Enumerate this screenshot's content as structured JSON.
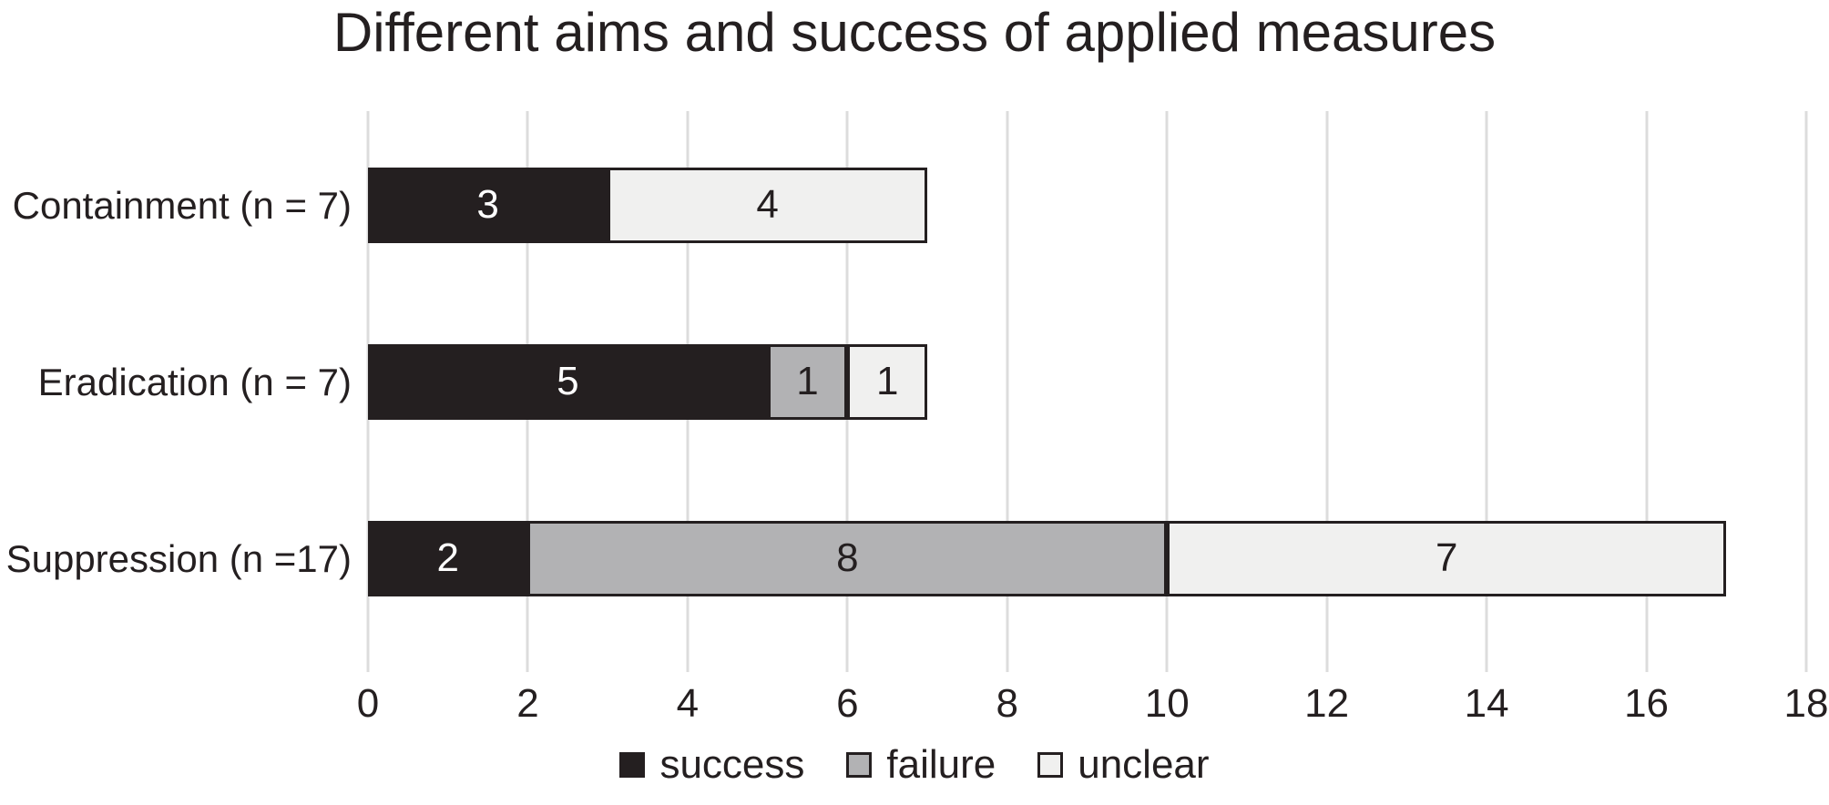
{
  "chart_data": {
    "type": "bar",
    "variant": "horizontal-stacked",
    "title": "Different aims and success of applied measures",
    "categories": [
      "Containment (n = 7)",
      "Eradication (n = 7)",
      "Suppression (n =17)"
    ],
    "series": [
      {
        "name": "success",
        "color": "#241f20",
        "label_color": "#ffffff",
        "values": [
          3,
          5,
          2
        ]
      },
      {
        "name": "failure",
        "color": "#b2b2b4",
        "label_color": "#241f20",
        "values": [
          0,
          1,
          8
        ]
      },
      {
        "name": "unclear",
        "color": "#f0f0ef",
        "label_color": "#241f20",
        "values": [
          4,
          1,
          7
        ]
      }
    ],
    "totals": [
      7,
      7,
      17
    ],
    "xlim": [
      0,
      18
    ],
    "xticks": [
      "0",
      "2",
      "4",
      "6",
      "8",
      "10",
      "12",
      "14",
      "16",
      "18"
    ],
    "grid": "vertical-only",
    "legend": {
      "position": "bottom",
      "entries": [
        "success",
        "failure",
        "unclear"
      ]
    },
    "colors": {
      "background": "#ffffff",
      "gridline": "#dcdcdc",
      "bar_border": "#241f20",
      "text": "#241f20"
    }
  }
}
